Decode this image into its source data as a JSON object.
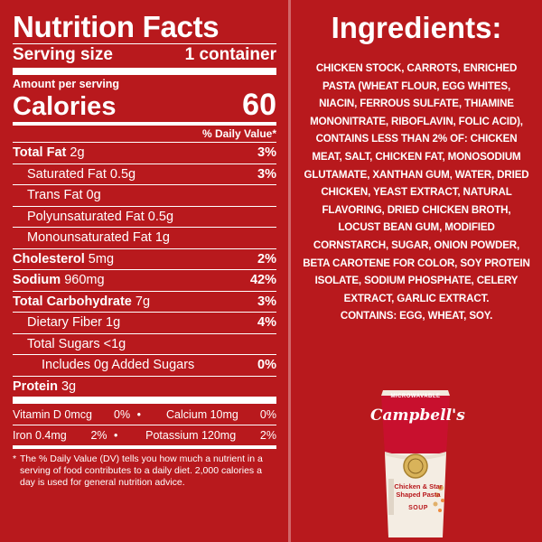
{
  "nutrition": {
    "title": "Nutrition Facts",
    "serving_label": "Serving size",
    "serving_value": "1 container",
    "amount_per_serving": "Amount per serving",
    "calories_label": "Calories",
    "calories_value": "60",
    "dv_header": "% Daily Value*",
    "rows": {
      "total_fat": {
        "label": "Total Fat",
        "amount": "2g",
        "pct": "3%"
      },
      "saturated_fat": {
        "label": "Saturated Fat 0.5g",
        "pct": "3%"
      },
      "trans_fat": {
        "label": "Trans Fat 0g"
      },
      "poly_fat": {
        "label": "Polyunsaturated Fat 0.5g"
      },
      "mono_fat": {
        "label": "Monounsaturated Fat 1g"
      },
      "cholesterol": {
        "label": "Cholesterol",
        "amount": "5mg",
        "pct": "2%"
      },
      "sodium": {
        "label": "Sodium",
        "amount": "960mg",
        "pct": "42%"
      },
      "total_carb": {
        "label": "Total Carbohydrate",
        "amount": "7g",
        "pct": "3%"
      },
      "dietary_fiber": {
        "label": "Dietary Fiber 1g",
        "pct": "4%"
      },
      "total_sugars": {
        "label": "Total Sugars <1g"
      },
      "added_sugars": {
        "label": "Includes 0g Added Sugars",
        "pct": "0%"
      },
      "protein": {
        "label": "Protein",
        "amount": "3g"
      }
    },
    "vitamins": {
      "vitamin_d": {
        "label": "Vitamin D 0mcg",
        "pct": "0%"
      },
      "calcium": {
        "label": "Calcium 10mg",
        "pct": "0%"
      },
      "iron": {
        "label": "Iron 0.4mg",
        "pct": "2%"
      },
      "potassium": {
        "label": "Potassium 120mg",
        "pct": "2%"
      },
      "bullet": "•"
    },
    "footnote_star": "*",
    "footnote": "The % Daily Value (DV) tells you how much a nutrient in a serving of food contributes to a daily diet. 2,000 calories a day is used for general nutrition advice."
  },
  "ingredients": {
    "title": "Ingredients:",
    "text": "CHICKEN STOCK, CARROTS, ENRICHED PASTA (WHEAT FLOUR, EGG WHITES, NIACIN, FERROUS SULFATE, THIAMINE MONONITRATE, RIBOFLAVIN, FOLIC ACID), CONTAINS LESS THAN 2% OF: CHICKEN MEAT, SALT, CHICKEN FAT, MONOSODIUM GLUTAMATE, XANTHAN GUM, WATER, DRIED CHICKEN, YEAST EXTRACT, NATURAL FLAVORING, DRIED CHICKEN BROTH, LOCUST BEAN GUM, MODIFIED CORNSTARCH, SUGAR, ONION POWDER, BETA CAROTENE FOR COLOR, SOY PROTEIN ISOLATE, SODIUM PHOSPHATE, CELERY EXTRACT, GARLIC EXTRACT.",
    "contains": "CONTAINS: EGG, WHEAT, SOY."
  },
  "product": {
    "microwavable": "MICROWAVABLE",
    "brand": "Campbell's",
    "name": "Chicken & Star Shaped Pasta",
    "type": "SOUP"
  },
  "colors": {
    "background": "#b8191d",
    "text": "#ffffff",
    "cup_cream": "#f4ede3",
    "cup_red": "#c8102e"
  }
}
